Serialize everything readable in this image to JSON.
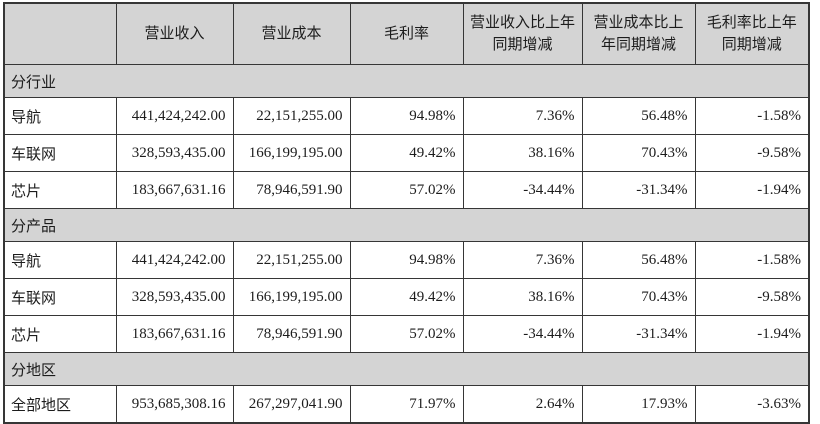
{
  "table": {
    "columns": [
      "",
      "营业收入",
      "营业成本",
      "毛利率",
      "营业收入比上年同期增减",
      "营业成本比上年同期增减",
      "毛利率比上年同期增减"
    ],
    "sections": [
      {
        "label": "分行业",
        "rows": [
          {
            "label": "导航",
            "values": [
              "441,424,242.00",
              "22,151,255.00",
              "94.98%",
              "7.36%",
              "56.48%",
              "-1.58%"
            ]
          },
          {
            "label": "车联网",
            "values": [
              "328,593,435.00",
              "166,199,195.00",
              "49.42%",
              "38.16%",
              "70.43%",
              "-9.58%"
            ]
          },
          {
            "label": "芯片",
            "values": [
              "183,667,631.16",
              "78,946,591.90",
              "57.02%",
              "-34.44%",
              "-31.34%",
              "-1.94%"
            ]
          }
        ]
      },
      {
        "label": "分产品",
        "rows": [
          {
            "label": "导航",
            "values": [
              "441,424,242.00",
              "22,151,255.00",
              "94.98%",
              "7.36%",
              "56.48%",
              "-1.58%"
            ]
          },
          {
            "label": "车联网",
            "values": [
              "328,593,435.00",
              "166,199,195.00",
              "49.42%",
              "38.16%",
              "70.43%",
              "-9.58%"
            ]
          },
          {
            "label": "芯片",
            "values": [
              "183,667,631.16",
              "78,946,591.90",
              "57.02%",
              "-34.44%",
              "-31.34%",
              "-1.94%"
            ]
          }
        ]
      },
      {
        "label": "分地区",
        "rows": [
          {
            "label": "全部地区",
            "values": [
              "953,685,308.16",
              "267,297,041.90",
              "71.97%",
              "2.64%",
              "17.93%",
              "-3.63%"
            ]
          }
        ]
      }
    ],
    "colors": {
      "header_bg": "#d4d4d4",
      "section_bg": "#d4d4d4",
      "row_bg": "#ffffff",
      "border": "#363636",
      "text": "#1c1c1c"
    }
  }
}
